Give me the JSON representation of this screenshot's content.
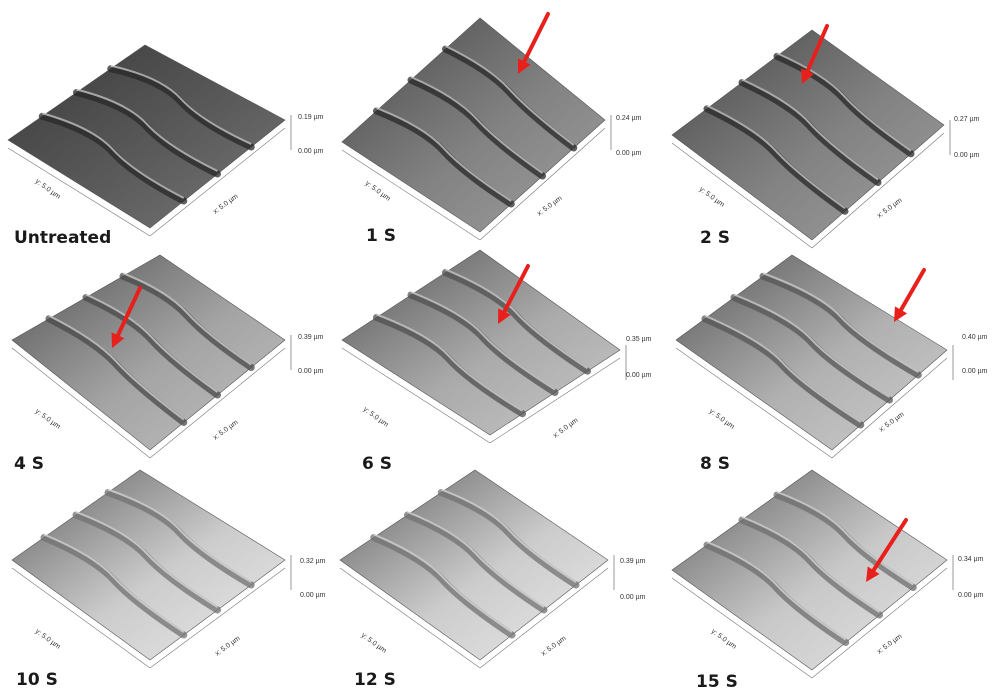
{
  "panels": [
    {
      "label": "Untreated",
      "z_max": "0.19 µm",
      "z_min": "0.00 µm",
      "y_axis": "y: 5.0 µm",
      "x_axis": "x: 5.0 µm",
      "arrow": false
    },
    {
      "label": "1 S",
      "z_max": "0.24 µm",
      "z_min": "0.00 µm",
      "y_axis": "y: 5.0 µm",
      "x_axis": "x: 5.0 µm",
      "arrow": true
    },
    {
      "label": "2 S",
      "z_max": "0.27 µm",
      "z_min": "0.00 µm",
      "y_axis": "y: 5.0 µm",
      "x_axis": "x: 5.0 µm",
      "arrow": true
    },
    {
      "label": "4 S",
      "z_max": "0.39 µm",
      "z_min": "0.00 µm",
      "y_axis": "y: 5.0 µm",
      "x_axis": "x: 5.0 µm",
      "arrow": true
    },
    {
      "label": "6 S",
      "z_max": "0.35 µm",
      "z_min": "0.00 µm",
      "y_axis": "y: 5.0 µm",
      "x_axis": "x: 5.0 µm",
      "arrow": true
    },
    {
      "label": "8 S",
      "z_max": "0.40 µm",
      "z_min": "0.00 µm",
      "y_axis": "y: 5.0 µm",
      "x_axis": "x: 5.0 µm",
      "arrow": true
    },
    {
      "label": "10 S",
      "z_max": "0.32 µm",
      "z_min": "0.00 µm",
      "y_axis": "y: 5.0 µm",
      "x_axis": "x: 5.0 µm",
      "arrow": false
    },
    {
      "label": "12 S",
      "z_max": "0.39 µm",
      "z_min": "0.00 µm",
      "y_axis": "y: 5.0 µm",
      "x_axis": "x: 5.0 µm",
      "arrow": false
    },
    {
      "label": "15 S",
      "z_max": "0.34 µm",
      "z_min": "0.00 µm",
      "y_axis": "y: 5.0 µm",
      "x_axis": "x: 5.0 µm",
      "arrow": true
    }
  ],
  "colors": {
    "arrow": "#e8201c",
    "surface_dark": "#3a3a3a",
    "surface_light": "#e8e8e8"
  }
}
